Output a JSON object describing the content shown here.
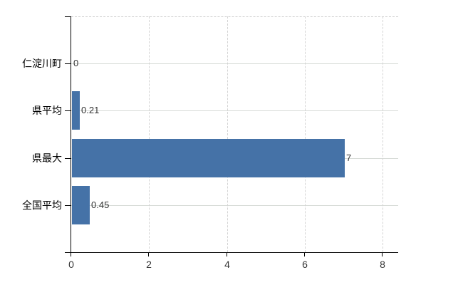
{
  "chart_data": {
    "type": "bar",
    "orientation": "horizontal",
    "title": "",
    "xlabel": "",
    "ylabel": "",
    "categories": [
      "仁淀川町",
      "県平均",
      "県最大",
      "全国平均"
    ],
    "values": [
      0,
      0.21,
      7,
      0.45
    ],
    "value_labels": [
      "0",
      "0.21",
      "7",
      "0.45"
    ],
    "x_ticks": [
      0,
      2,
      4,
      6,
      8
    ],
    "x_tick_labels": [
      "0",
      "2",
      "4",
      "6",
      "8"
    ],
    "xlim": [
      0,
      8.4
    ],
    "grid": {
      "vertical": "dashed",
      "horizontal": "solid",
      "top_border": "dashed"
    },
    "legend": "none",
    "colors": {
      "bar": "#4572a7",
      "axis": "#000000",
      "gridline_h": "#d6dad6",
      "gridline_v": "#d4d4d4",
      "category_label": "#000000",
      "value_label": "#333333",
      "tick_label": "#333333",
      "background": "#ffffff"
    }
  }
}
